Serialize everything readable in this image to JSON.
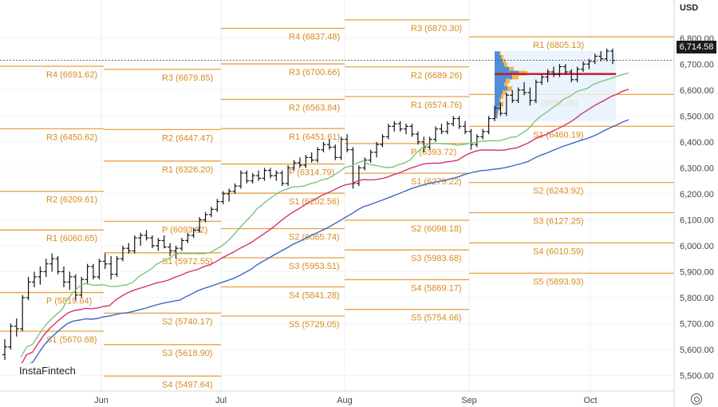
{
  "chart_data": {
    "type": "ohlc",
    "currency": "USD",
    "watermark": "InstaFintech",
    "last_price": "6,714.58",
    "ylim": [
      5440,
      6910
    ],
    "y_ticks": [
      5500,
      5600,
      5700,
      5800,
      5900,
      6000,
      6100,
      6200,
      6300,
      6400,
      6500,
      6600,
      6700,
      6800
    ],
    "y_tick_labels": [
      "5,500.00",
      "5,600.00",
      "5,700.00",
      "5,800.00",
      "5,900.00",
      "6,000.00",
      "6,100.00",
      "6,200.00",
      "6,300.00",
      "6,400.00",
      "6,500.00",
      "6,600.00",
      "6,700.00",
      "6,800.00"
    ],
    "x_labels": [
      "Jun",
      "Jul",
      "Aug",
      "Sep",
      "Oct"
    ],
    "grid": true,
    "colors": {
      "bars": "#111111",
      "pivot_lines": "#e8a040",
      "pivot_labels": "#d98a1e",
      "ma_fast": "#7dc67b",
      "ma_mid": "#d6336c",
      "ma_slow": "#3f65c8",
      "poc_line": "#c8102e",
      "volume_profile": "#4f8fd8"
    },
    "pivot_periods": [
      {
        "period": "May",
        "levels": [
          {
            "label": "R4 (6691.62)",
            "value": 6691.62
          },
          {
            "label": "R3 (6450.62)",
            "value": 6450.62
          },
          {
            "label": "R2 (6209.61)",
            "value": 6209.61
          },
          {
            "label": "R1 (6060.65)",
            "value": 6060.65
          },
          {
            "label": "P (5819.64)",
            "value": 5819.64
          },
          {
            "label": "S1 (5670.68)",
            "value": 5670.68
          }
        ]
      },
      {
        "period": "Jun",
        "levels": [
          {
            "label": "R3 (6679.85)",
            "value": 6679.85
          },
          {
            "label": "R2 (6447.47)",
            "value": 6447.47
          },
          {
            "label": "R1 (6326.20)",
            "value": 6326.2
          },
          {
            "label": "P (6093.82)",
            "value": 6093.82
          },
          {
            "label": "S1 (5972.55)",
            "value": 5972.55
          },
          {
            "label": "S2 (5740.17)",
            "value": 5740.17
          },
          {
            "label": "S3 (5618.90)",
            "value": 5618.9
          },
          {
            "label": "S4 (5497.64)",
            "value": 5497.64
          }
        ]
      },
      {
        "period": "Jul",
        "levels": [
          {
            "label": "R4 (6837.48)",
            "value": 6837.48
          },
          {
            "label": "R3 (6700.66)",
            "value": 6700.66
          },
          {
            "label": "R2 (6563.84)",
            "value": 6563.84
          },
          {
            "label": "R1 (6451.61)",
            "value": 6451.61
          },
          {
            "label": "P (6314.79)",
            "value": 6314.79
          },
          {
            "label": "S1 (6202.56)",
            "value": 6202.56
          },
          {
            "label": "S2 (6065.74)",
            "value": 6065.74
          },
          {
            "label": "S3 (5953.51)",
            "value": 5953.51
          },
          {
            "label": "S4 (5841.28)",
            "value": 5841.28
          },
          {
            "label": "S5 (5729.05)",
            "value": 5729.05
          }
        ]
      },
      {
        "period": "Aug",
        "levels": [
          {
            "label": "R3 (6870.30)",
            "value": 6870.3
          },
          {
            "label": "R2 (6689.26)",
            "value": 6689.26
          },
          {
            "label": "R1 (6574.76)",
            "value": 6574.76
          },
          {
            "label": "P (6393.72)",
            "value": 6393.72
          },
          {
            "label": "S1 (6279.22)",
            "value": 6279.22
          },
          {
            "label": "S2 (6098.18)",
            "value": 6098.18
          },
          {
            "label": "S3 (5983.68)",
            "value": 5983.68
          },
          {
            "label": "S4 (5869.17)",
            "value": 5869.17
          },
          {
            "label": "S5 (5754.66)",
            "value": 5754.66
          }
        ]
      },
      {
        "period": "Sep",
        "levels": [
          {
            "label": "R1 (6805.13)",
            "value": 6805.13
          },
          {
            "label": "P (6582.86)",
            "value": 6582.86
          },
          {
            "label": "S1 (6460.19)",
            "value": 6460.19
          },
          {
            "label": "S2 (6243.92)",
            "value": 6243.92
          },
          {
            "label": "S3 (6127.25)",
            "value": 6127.25
          },
          {
            "label": "S4 (6010.59)",
            "value": 6010.59
          },
          {
            "label": "S5 (5893.93)",
            "value": 5893.93
          }
        ]
      }
    ],
    "poc_level": 6662,
    "bars": [
      [
        5580,
        5640,
        5560,
        5610
      ],
      [
        5610,
        5700,
        5600,
        5690
      ],
      [
        5690,
        5720,
        5650,
        5680
      ],
      [
        5680,
        5810,
        5670,
        5800
      ],
      [
        5800,
        5880,
        5790,
        5860
      ],
      [
        5860,
        5900,
        5840,
        5880
      ],
      [
        5880,
        5920,
        5850,
        5900
      ],
      [
        5900,
        5950,
        5880,
        5930
      ],
      [
        5930,
        5970,
        5900,
        5950
      ],
      [
        5950,
        5960,
        5890,
        5900
      ],
      [
        5900,
        5920,
        5840,
        5860
      ],
      [
        5860,
        5900,
        5830,
        5880
      ],
      [
        5880,
        5890,
        5790,
        5810
      ],
      [
        5810,
        5880,
        5800,
        5870
      ],
      [
        5870,
        5930,
        5850,
        5920
      ],
      [
        5920,
        5930,
        5870,
        5880
      ],
      [
        5880,
        5950,
        5870,
        5940
      ],
      [
        5940,
        5970,
        5910,
        5930
      ],
      [
        5930,
        5960,
        5870,
        5890
      ],
      [
        5890,
        5960,
        5880,
        5950
      ],
      [
        5950,
        6000,
        5940,
        5990
      ],
      [
        5990,
        6010,
        5970,
        5980
      ],
      [
        5980,
        6040,
        5970,
        6030
      ],
      [
        6030,
        6050,
        6000,
        6040
      ],
      [
        6040,
        6060,
        6020,
        6030
      ],
      [
        6030,
        6040,
        5990,
        6000
      ],
      [
        6000,
        6030,
        5980,
        6020
      ],
      [
        6020,
        6040,
        5990,
        5995
      ],
      [
        5995,
        6010,
        5960,
        5980
      ],
      [
        5980,
        6000,
        5950,
        5990
      ],
      [
        5990,
        6030,
        5980,
        6020
      ],
      [
        6020,
        6050,
        6010,
        6040
      ],
      [
        6040,
        6070,
        6030,
        6060
      ],
      [
        6060,
        6110,
        6050,
        6100
      ],
      [
        6100,
        6130,
        6090,
        6120
      ],
      [
        6120,
        6150,
        6110,
        6140
      ],
      [
        6140,
        6180,
        6130,
        6170
      ],
      [
        6170,
        6210,
        6160,
        6200
      ],
      [
        6200,
        6220,
        6170,
        6210
      ],
      [
        6210,
        6240,
        6200,
        6230
      ],
      [
        6230,
        6290,
        6220,
        6280
      ],
      [
        6280,
        6290,
        6240,
        6250
      ],
      [
        6250,
        6280,
        6240,
        6270
      ],
      [
        6270,
        6290,
        6250,
        6260
      ],
      [
        6260,
        6300,
        6250,
        6290
      ],
      [
        6290,
        6300,
        6260,
        6270
      ],
      [
        6270,
        6290,
        6250,
        6280
      ],
      [
        6280,
        6290,
        6230,
        6240
      ],
      [
        6240,
        6310,
        6230,
        6300
      ],
      [
        6300,
        6330,
        6290,
        6320
      ],
      [
        6320,
        6340,
        6300,
        6310
      ],
      [
        6310,
        6350,
        6300,
        6340
      ],
      [
        6340,
        6360,
        6320,
        6330
      ],
      [
        6330,
        6380,
        6320,
        6370
      ],
      [
        6370,
        6400,
        6360,
        6390
      ],
      [
        6390,
        6410,
        6370,
        6380
      ],
      [
        6380,
        6390,
        6330,
        6340
      ],
      [
        6340,
        6420,
        6330,
        6410
      ],
      [
        6410,
        6430,
        6360,
        6370
      ],
      [
        6370,
        6380,
        6220,
        6240
      ],
      [
        6240,
        6310,
        6230,
        6300
      ],
      [
        6300,
        6340,
        6290,
        6330
      ],
      [
        6330,
        6370,
        6320,
        6360
      ],
      [
        6360,
        6400,
        6340,
        6390
      ],
      [
        6390,
        6430,
        6380,
        6420
      ],
      [
        6420,
        6470,
        6410,
        6460
      ],
      [
        6460,
        6480,
        6440,
        6470
      ],
      [
        6470,
        6480,
        6440,
        6450
      ],
      [
        6450,
        6470,
        6430,
        6460
      ],
      [
        6460,
        6470,
        6420,
        6430
      ],
      [
        6430,
        6440,
        6390,
        6400
      ],
      [
        6400,
        6420,
        6360,
        6380
      ],
      [
        6380,
        6420,
        6370,
        6410
      ],
      [
        6410,
        6460,
        6400,
        6450
      ],
      [
        6450,
        6470,
        6430,
        6440
      ],
      [
        6440,
        6480,
        6430,
        6470
      ],
      [
        6470,
        6500,
        6460,
        6490
      ],
      [
        6490,
        6500,
        6450,
        6460
      ],
      [
        6460,
        6480,
        6430,
        6440
      ],
      [
        6440,
        6450,
        6370,
        6390
      ],
      [
        6390,
        6430,
        6380,
        6420
      ],
      [
        6420,
        6450,
        6410,
        6440
      ],
      [
        6440,
        6500,
        6430,
        6490
      ],
      [
        6490,
        6540,
        6480,
        6530
      ],
      [
        6530,
        6550,
        6500,
        6510
      ],
      [
        6510,
        6590,
        6500,
        6580
      ],
      [
        6580,
        6600,
        6550,
        6560
      ],
      [
        6560,
        6610,
        6550,
        6600
      ],
      [
        6600,
        6630,
        6580,
        6590
      ],
      [
        6590,
        6610,
        6540,
        6560
      ],
      [
        6560,
        6640,
        6550,
        6630
      ],
      [
        6630,
        6660,
        6620,
        6650
      ],
      [
        6650,
        6680,
        6630,
        6670
      ],
      [
        6670,
        6690,
        6650,
        6660
      ],
      [
        6660,
        6700,
        6650,
        6690
      ],
      [
        6690,
        6700,
        6660,
        6670
      ],
      [
        6670,
        6680,
        6630,
        6640
      ],
      [
        6640,
        6690,
        6630,
        6680
      ],
      [
        6680,
        6710,
        6670,
        6700
      ],
      [
        6700,
        6720,
        6680,
        6710
      ],
      [
        6710,
        6740,
        6700,
        6730
      ],
      [
        6730,
        6750,
        6710,
        6720
      ],
      [
        6720,
        6760,
        6710,
        6750
      ],
      [
        6750,
        6760,
        6700,
        6714
      ]
    ]
  }
}
